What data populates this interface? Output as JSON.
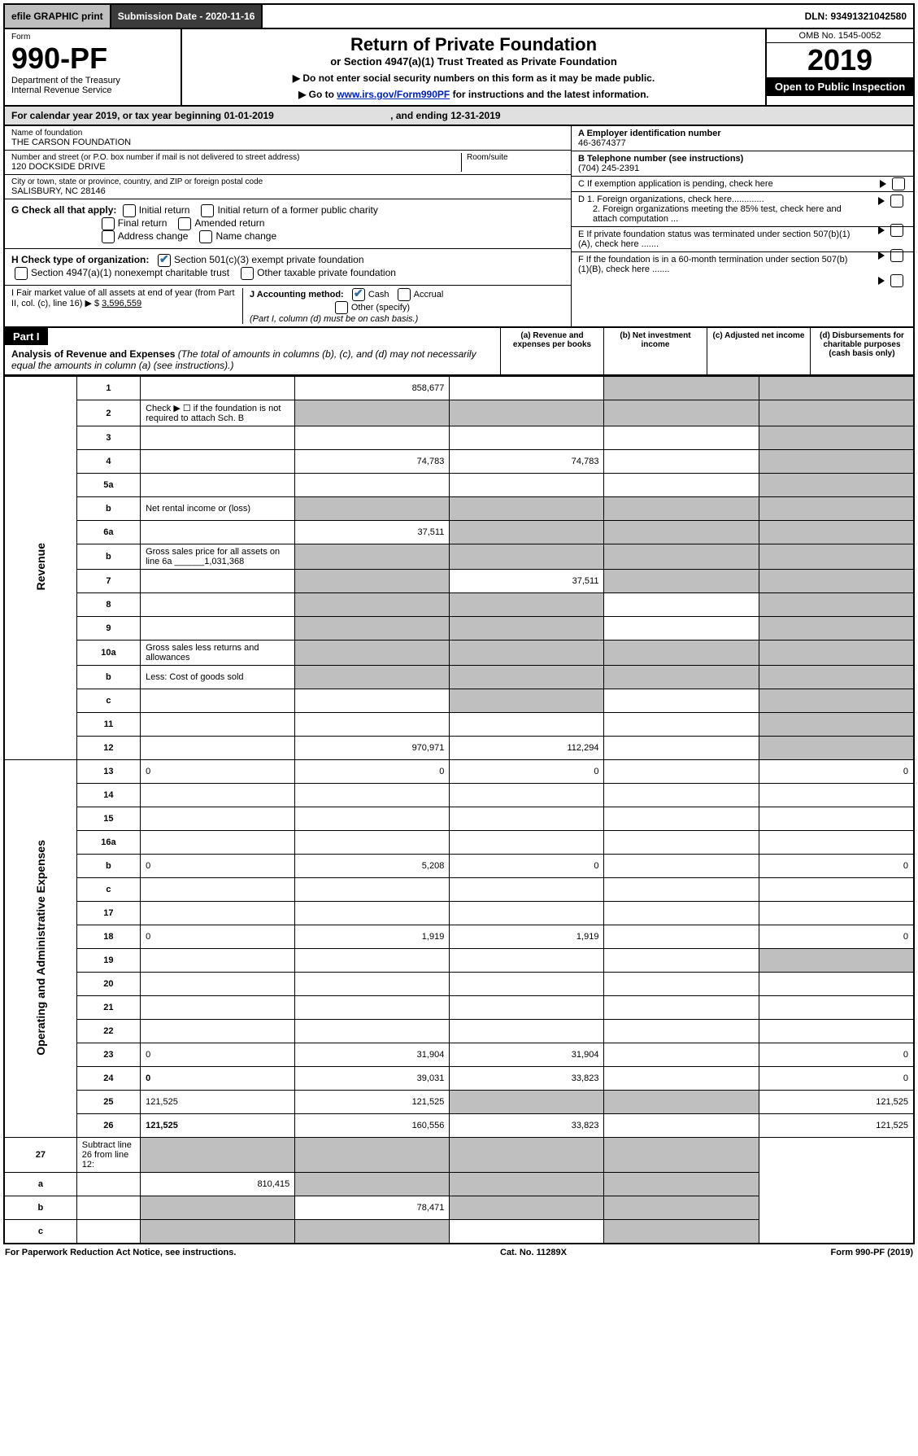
{
  "top": {
    "efile": "efile GRAPHIC print",
    "submission": "Submission Date - 2020-11-16",
    "dln": "DLN: 93491321042580"
  },
  "header": {
    "form_word": "Form",
    "form_num": "990-PF",
    "dept1": "Department of the Treasury",
    "dept2": "Internal Revenue Service",
    "title": "Return of Private Foundation",
    "subtitle": "or Section 4947(a)(1) Trust Treated as Private Foundation",
    "note1": "▶ Do not enter social security numbers on this form as it may be made public.",
    "note2_pre": "▶ Go to ",
    "note2_link": "www.irs.gov/Form990PF",
    "note2_post": " for instructions and the latest information.",
    "omb": "OMB No. 1545-0052",
    "year": "2019",
    "open": "Open to Public Inspection"
  },
  "calyear": {
    "text_pre": "For calendar year 2019, or tax year beginning ",
    "begin": "01-01-2019",
    "mid": " , and ending ",
    "end": "12-31-2019"
  },
  "entity": {
    "name_label": "Name of foundation",
    "name": "THE CARSON FOUNDATION",
    "addr_label": "Number and street (or P.O. box number if mail is not delivered to street address)",
    "addr": "120 DOCKSIDE DRIVE",
    "room_label": "Room/suite",
    "city_label": "City or town, state or province, country, and ZIP or foreign postal code",
    "city": "SALISBURY, NC  28146",
    "ein_label": "A Employer identification number",
    "ein": "46-3674377",
    "phone_label": "B Telephone number (see instructions)",
    "phone": "(704) 245-2391",
    "c_label": "C If exemption application is pending, check here",
    "d1": "D 1. Foreign organizations, check here.............",
    "d2": "2. Foreign organizations meeting the 85% test, check here and attach computation ...",
    "e_label": "E If private foundation status was terminated under section 507(b)(1)(A), check here .......",
    "f_label": "F If the foundation is in a 60-month termination under section 507(b)(1)(B), check here .......",
    "g_label": "G Check all that apply:",
    "g_initial": "Initial return",
    "g_initial_former": "Initial return of a former public charity",
    "g_final": "Final return",
    "g_amended": "Amended return",
    "g_address": "Address change",
    "g_name": "Name change",
    "h_label": "H Check type of organization:",
    "h_501c3": "Section 501(c)(3) exempt private foundation",
    "h_4947": "Section 4947(a)(1) nonexempt charitable trust",
    "h_other": "Other taxable private foundation",
    "i_label": "I Fair market value of all assets at end of year (from Part II, col. (c), line 16) ▶ $ ",
    "i_val": "3,596,559",
    "j_label": "J Accounting method:",
    "j_cash": "Cash",
    "j_accrual": "Accrual",
    "j_other": "Other (specify)",
    "j_note": "(Part I, column (d) must be on cash basis.)"
  },
  "part1": {
    "label": "Part I",
    "title": "Analysis of Revenue and Expenses",
    "note": "(The total of amounts in columns (b), (c), and (d) may not necessarily equal the amounts in column (a) (see instructions).)",
    "col_a": "(a)   Revenue and expenses per books",
    "col_b": "(b)  Net investment income",
    "col_c": "(c)  Adjusted net income",
    "col_d": "(d)  Disbursements for charitable purposes (cash basis only)"
  },
  "sections": {
    "revenue": "Revenue",
    "expenses": "Operating and Administrative Expenses"
  },
  "rows": [
    {
      "n": "1",
      "d": "",
      "a": "858,677",
      "b": "",
      "c": "",
      "shade_c": true,
      "shade_d": true
    },
    {
      "n": "2",
      "d": "Check ▶ ☐ if the foundation is not required to attach Sch. B",
      "merge": true
    },
    {
      "n": "3",
      "d": "",
      "a": "",
      "b": "",
      "c": "",
      "shade_d": true
    },
    {
      "n": "4",
      "d": "",
      "a": "74,783",
      "b": "74,783",
      "c": "",
      "shade_d": true
    },
    {
      "n": "5a",
      "d": "",
      "a": "",
      "b": "",
      "c": "",
      "shade_d": true
    },
    {
      "n": "b",
      "d": "Net rental income or (loss)",
      "merge": true
    },
    {
      "n": "6a",
      "d": "",
      "a": "37,511",
      "b": "",
      "c": "",
      "shade_b": true,
      "shade_c": true,
      "shade_d": true
    },
    {
      "n": "b",
      "d": "Gross sales price for all assets on line 6a ______1,031,368",
      "merge": true
    },
    {
      "n": "7",
      "d": "",
      "a": "",
      "b": "37,511",
      "c": "",
      "shade_a": true,
      "shade_c": true,
      "shade_d": true
    },
    {
      "n": "8",
      "d": "",
      "a": "",
      "b": "",
      "c": "",
      "shade_a": true,
      "shade_b": true,
      "shade_d": true
    },
    {
      "n": "9",
      "d": "",
      "a": "",
      "b": "",
      "c": "",
      "shade_a": true,
      "shade_b": true,
      "shade_d": true
    },
    {
      "n": "10a",
      "d": "Gross sales less returns and allowances",
      "merge": true
    },
    {
      "n": "b",
      "d": "Less: Cost of goods sold",
      "merge": true
    },
    {
      "n": "c",
      "d": "",
      "a": "",
      "b": "",
      "c": "",
      "shade_b": true,
      "shade_d": true
    },
    {
      "n": "11",
      "d": "",
      "a": "",
      "b": "",
      "c": "",
      "shade_d": true
    },
    {
      "n": "12",
      "d": "",
      "a": "970,971",
      "b": "112,294",
      "c": "",
      "shade_d": true,
      "bold": true
    }
  ],
  "exp_rows": [
    {
      "n": "13",
      "d": "0",
      "a": "0",
      "b": "0",
      "c": ""
    },
    {
      "n": "14",
      "d": "",
      "a": "",
      "b": "",
      "c": ""
    },
    {
      "n": "15",
      "d": "",
      "a": "",
      "b": "",
      "c": ""
    },
    {
      "n": "16a",
      "d": "",
      "a": "",
      "b": "",
      "c": ""
    },
    {
      "n": "b",
      "d": "0",
      "a": "5,208",
      "b": "0",
      "c": ""
    },
    {
      "n": "c",
      "d": "",
      "a": "",
      "b": "",
      "c": ""
    },
    {
      "n": "17",
      "d": "",
      "a": "",
      "b": "",
      "c": ""
    },
    {
      "n": "18",
      "d": "0",
      "a": "1,919",
      "b": "1,919",
      "c": ""
    },
    {
      "n": "19",
      "d": "",
      "a": "",
      "b": "",
      "c": "",
      "shade_d": true
    },
    {
      "n": "20",
      "d": "",
      "a": "",
      "b": "",
      "c": ""
    },
    {
      "n": "21",
      "d": "",
      "a": "",
      "b": "",
      "c": ""
    },
    {
      "n": "22",
      "d": "",
      "a": "",
      "b": "",
      "c": ""
    },
    {
      "n": "23",
      "d": "0",
      "a": "31,904",
      "b": "31,904",
      "c": ""
    },
    {
      "n": "24",
      "d": "0",
      "a": "39,031",
      "b": "33,823",
      "c": "",
      "bold": true
    },
    {
      "n": "25",
      "d": "121,525",
      "a": "121,525",
      "b": "",
      "c": "",
      "shade_b": true,
      "shade_c": true
    },
    {
      "n": "26",
      "d": "121,525",
      "a": "160,556",
      "b": "33,823",
      "c": "",
      "bold": true
    }
  ],
  "net_rows": [
    {
      "n": "27",
      "d": "Subtract line 26 from line 12:",
      "shade_all": true
    },
    {
      "n": "a",
      "d": "",
      "a": "810,415",
      "b": "",
      "c": "",
      "shade_b": true,
      "shade_c": true,
      "shade_d": true,
      "bold": true
    },
    {
      "n": "b",
      "d": "",
      "a": "",
      "b": "78,471",
      "c": "",
      "shade_a": true,
      "shade_c": true,
      "shade_d": true,
      "bold": true
    },
    {
      "n": "c",
      "d": "",
      "a": "",
      "b": "",
      "c": "",
      "shade_a": true,
      "shade_b": true,
      "shade_d": true,
      "bold": true
    }
  ],
  "footer": {
    "pra": "For Paperwork Reduction Act Notice, see instructions.",
    "cat": "Cat. No. 11289X",
    "form": "Form 990-PF (2019)"
  }
}
